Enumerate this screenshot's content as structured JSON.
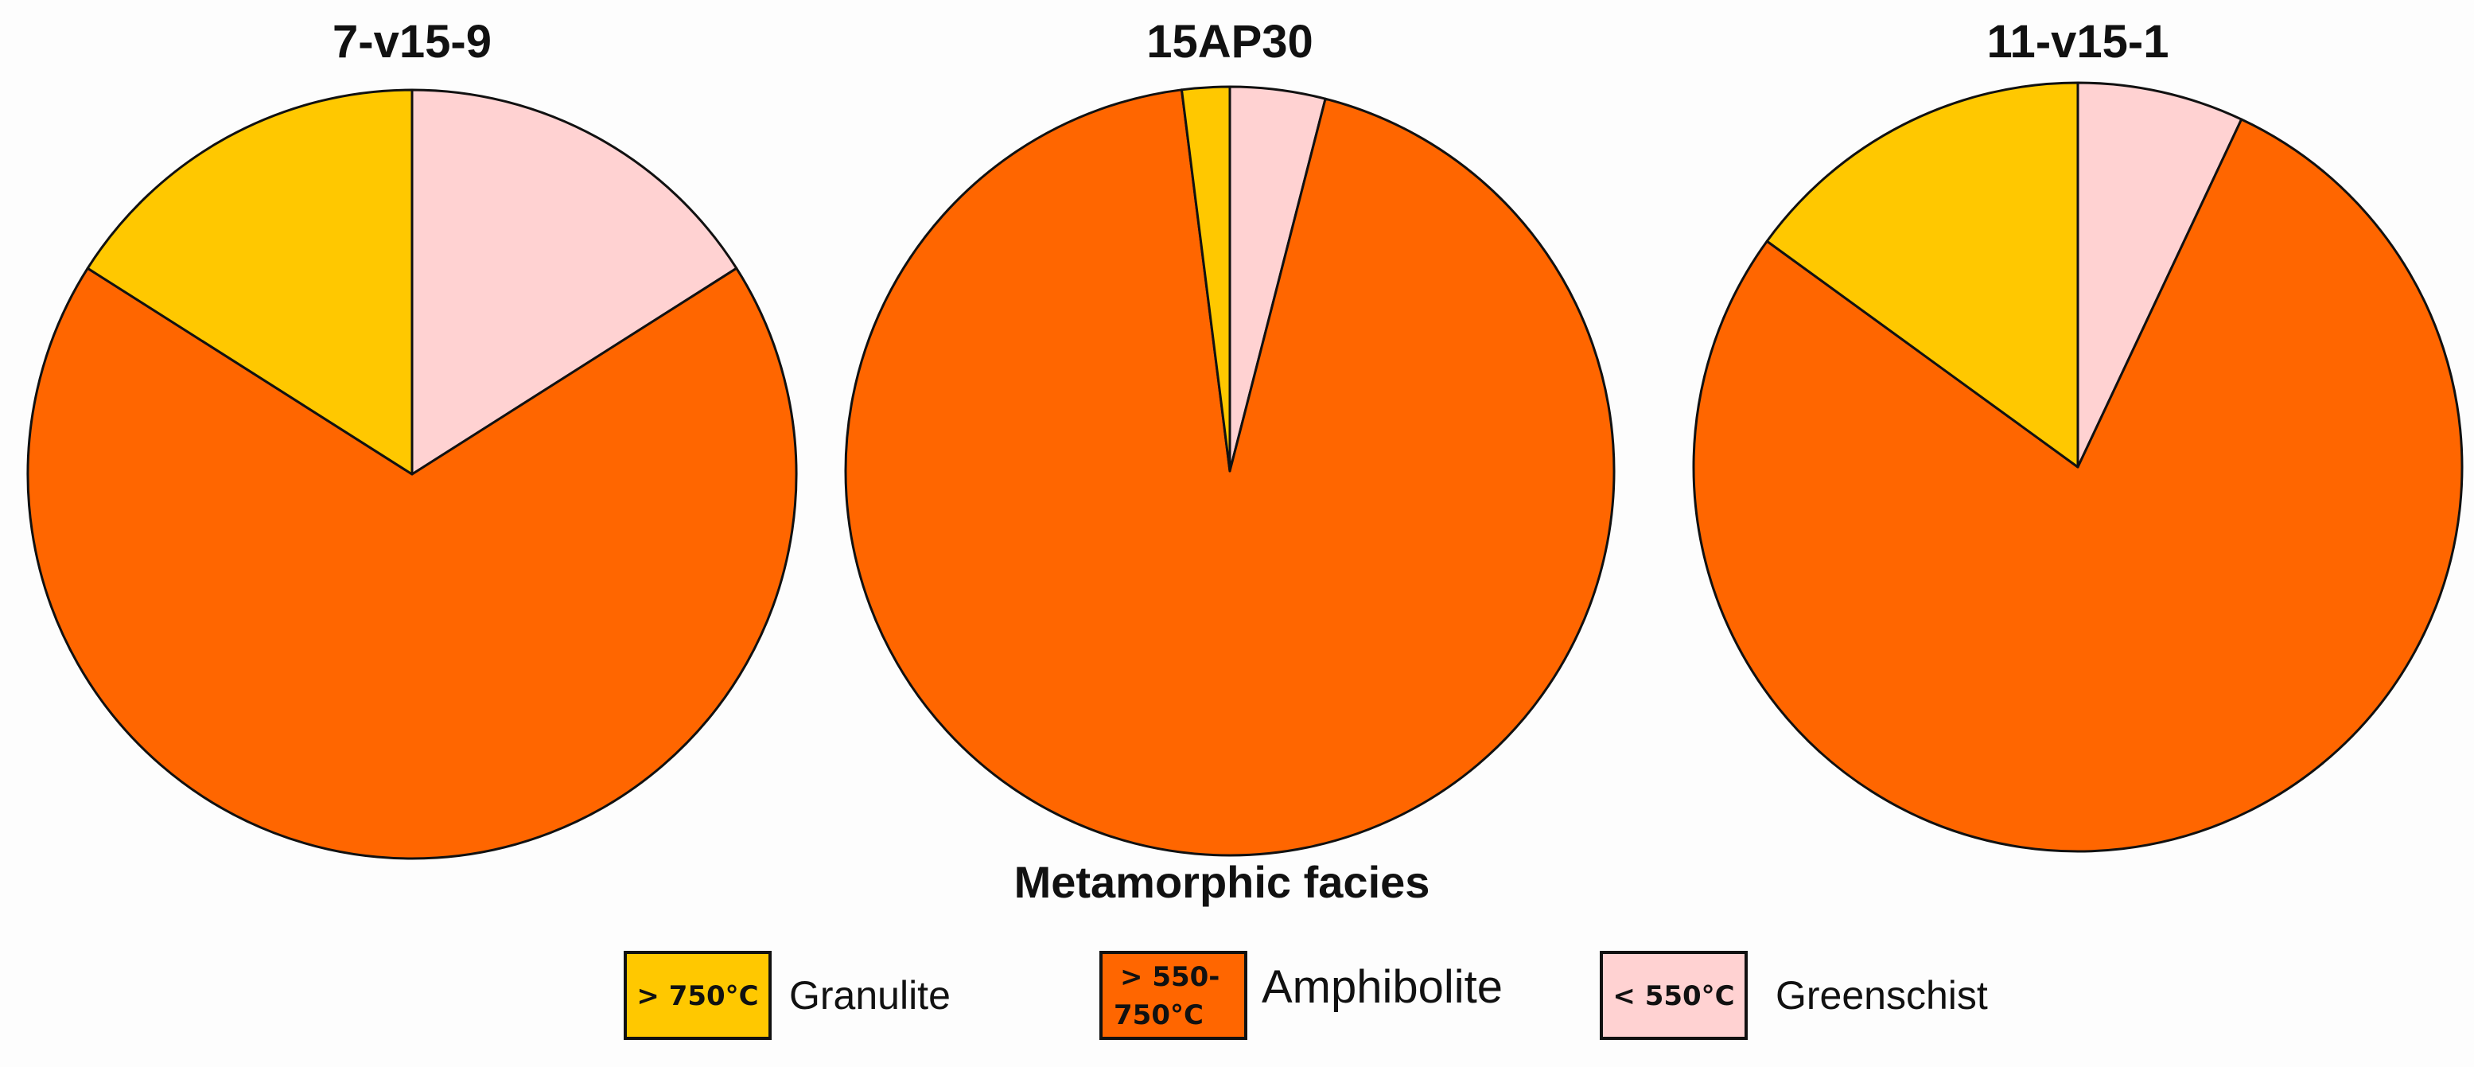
{
  "chart_data": [
    {
      "type": "pie",
      "title": "7-v15-9",
      "slices": [
        {
          "label": "Granulite",
          "value": 16
        },
        {
          "label": "Amphibolite",
          "value": 68
        },
        {
          "label": "Greenschist",
          "value": 16
        }
      ]
    },
    {
      "type": "pie",
      "title": "15AP30",
      "slices": [
        {
          "label": "Granulite",
          "value": 2
        },
        {
          "label": "Amphibolite",
          "value": 94
        },
        {
          "label": "Greenschist",
          "value": 4
        }
      ]
    },
    {
      "type": "pie",
      "title": "11-v15-1",
      "slices": [
        {
          "label": "Granulite",
          "value": 15
        },
        {
          "label": "Amphibolite",
          "value": 78
        },
        {
          "label": "Greenschist",
          "value": 7
        }
      ]
    }
  ],
  "legend": {
    "title": "Metamorphic facies",
    "placement": "bottom-center",
    "items": [
      {
        "key": "Granulite",
        "box_label_lines": [
          "> 750°C"
        ],
        "name": "Granulite",
        "color": "#FFC800"
      },
      {
        "key": "Amphibolite",
        "box_label_lines": [
          "> 550-",
          "750°C"
        ],
        "name": "Amphibolite",
        "color": "#FF6600"
      },
      {
        "key": "Greenschist",
        "box_label_lines": [
          "< 550°C"
        ],
        "name": "Greenschist",
        "color": "#FFD2D2"
      }
    ]
  },
  "style": {
    "stroke": "#111111",
    "background": "#fdfdfd"
  }
}
